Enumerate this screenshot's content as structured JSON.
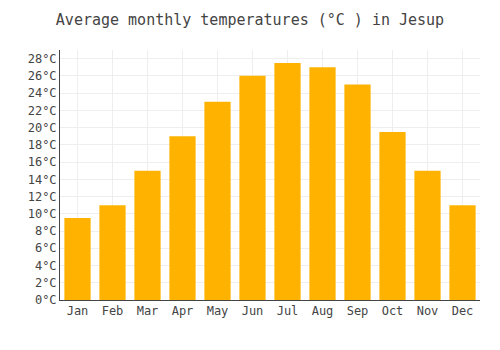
{
  "chart_data": {
    "type": "bar",
    "title": "Average monthly temperatures (°C ) in Jesup",
    "categories": [
      "Jan",
      "Feb",
      "Mar",
      "Apr",
      "May",
      "Jun",
      "Jul",
      "Aug",
      "Sep",
      "Oct",
      "Nov",
      "Dec"
    ],
    "values": [
      9.5,
      11.0,
      15.0,
      19.0,
      23.0,
      26.0,
      27.5,
      27.0,
      25.0,
      19.5,
      15.0,
      11.0
    ],
    "color": "#FFB300",
    "ylim": [
      0,
      29
    ],
    "yticks": [
      {
        "value": 0,
        "label": "0°C"
      },
      {
        "value": 2,
        "label": "2°C"
      },
      {
        "value": 4,
        "label": "4°C"
      },
      {
        "value": 6,
        "label": "6°C"
      },
      {
        "value": 8,
        "label": "8°C"
      },
      {
        "value": 10,
        "label": "10°C"
      },
      {
        "value": 12,
        "label": "12°C"
      },
      {
        "value": 14,
        "label": "14°C"
      },
      {
        "value": 16,
        "label": "16°C"
      },
      {
        "value": 18,
        "label": "18°C"
      },
      {
        "value": 20,
        "label": "20°C"
      },
      {
        "value": 22,
        "label": "22°C"
      },
      {
        "value": 24,
        "label": "24°C"
      },
      {
        "value": 26,
        "label": "26°C"
      },
      {
        "value": 28,
        "label": "28°C"
      }
    ],
    "grid": true
  }
}
